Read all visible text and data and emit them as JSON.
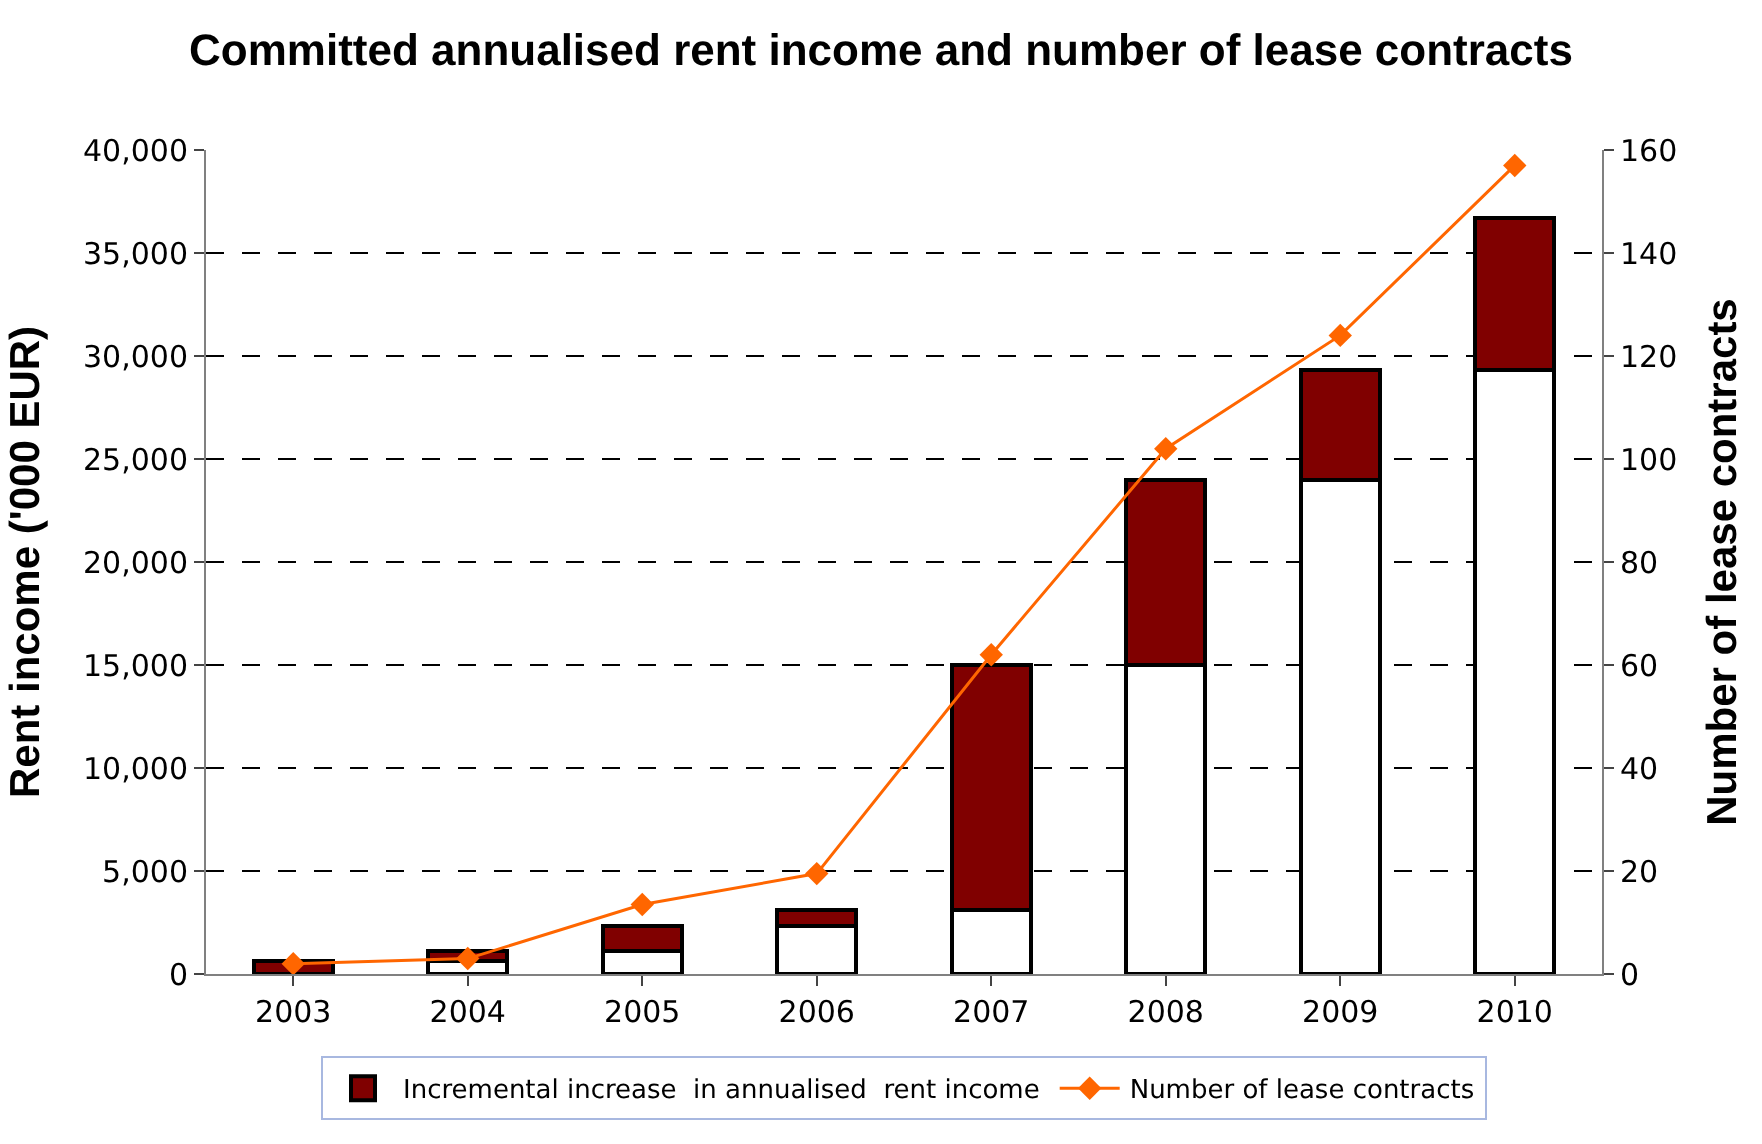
{
  "chart_data": {
    "type": "bar",
    "title": "Committed annualised rent income and number of lease contracts",
    "categories": [
      "2003",
      "2004",
      "2005",
      "2006",
      "2007",
      "2008",
      "2009",
      "2010"
    ],
    "stacked": true,
    "series": [
      {
        "color": "#ffffff",
        "values": [
          0,
          650,
          1100,
          2350,
          3100,
          15000,
          24000,
          29300
        ]
      },
      {
        "name": "Incremental increase  in annualised  rent income",
        "color": "#800000",
        "values": [
          650,
          450,
          1250,
          750,
          11900,
          9000,
          5300,
          7400
        ]
      },
      {
        "name": "Number of lease contracts",
        "type": "line",
        "axis": "y2",
        "color": "#ff6600",
        "marker": "diamond",
        "values": [
          2,
          3,
          13.5,
          19.5,
          62,
          102,
          124,
          157
        ]
      }
    ],
    "ylabel": "Rent income ('000 EUR)",
    "y2label": "Number of lease contracts",
    "ylim": [
      0,
      40000
    ],
    "yticks": [
      {
        "value": 0,
        "label": "0"
      },
      {
        "value": 5000,
        "label": "5,000"
      },
      {
        "value": 10000,
        "label": "10,000"
      },
      {
        "value": 15000,
        "label": "15,000"
      },
      {
        "value": 20000,
        "label": "20,000"
      },
      {
        "value": 25000,
        "label": "25,000"
      },
      {
        "value": 30000,
        "label": "30,000"
      },
      {
        "value": 35000,
        "label": "35,000"
      },
      {
        "value": 40000,
        "label": "40,000"
      }
    ],
    "y2lim": [
      0,
      160
    ],
    "y2ticks": [
      0,
      20,
      40,
      60,
      80,
      100,
      120,
      140,
      160
    ],
    "grid": "y",
    "legend": "bottom"
  }
}
